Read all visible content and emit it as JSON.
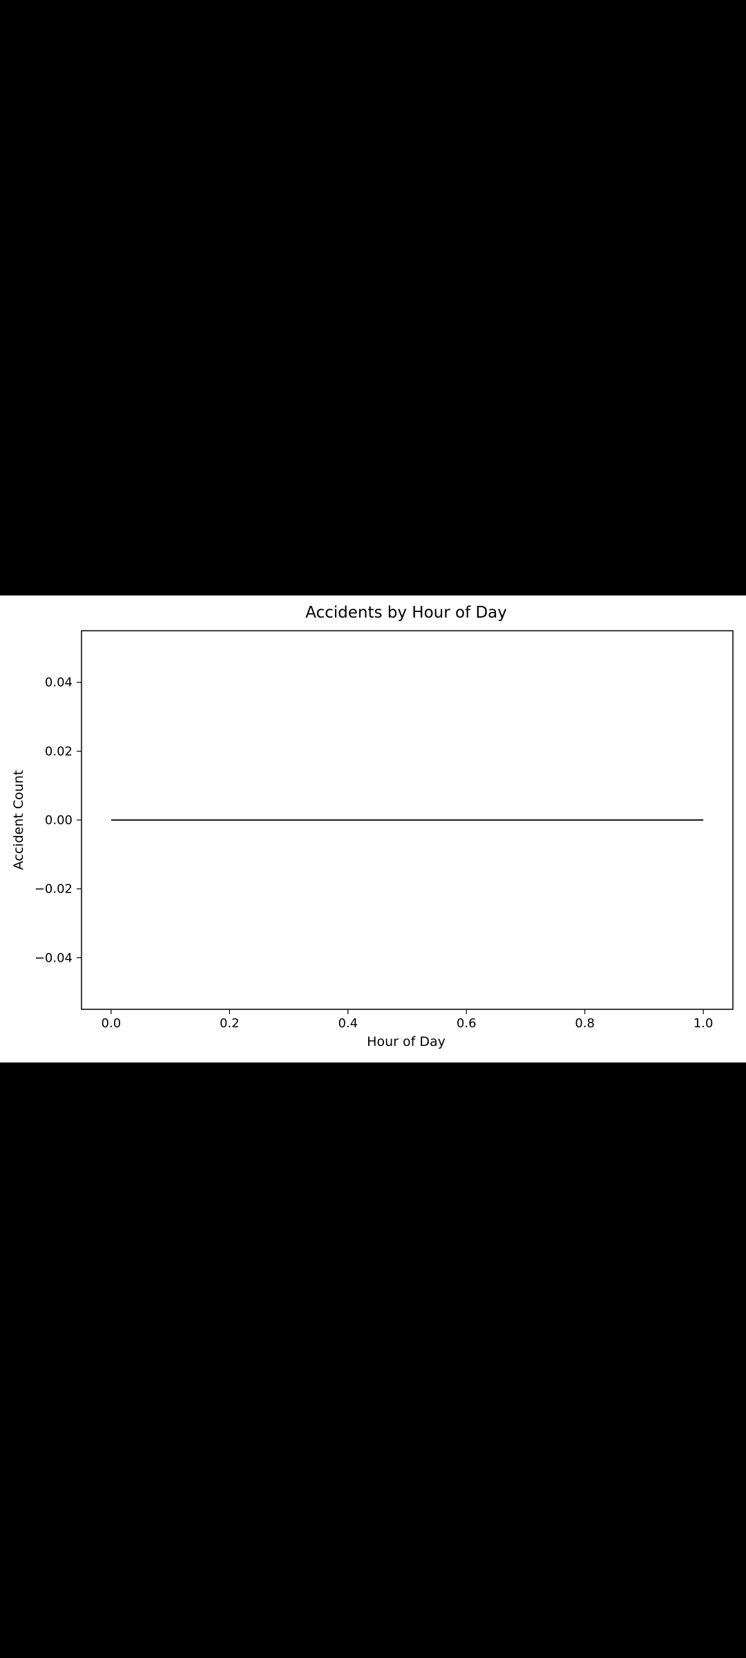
{
  "chart_data": {
    "type": "line",
    "title": "Accidents by Hour of Day",
    "xlabel": "Hour of Day",
    "ylabel": "Accident Count",
    "x": [
      0.0,
      1.0
    ],
    "series": [
      {
        "values": [
          0,
          0
        ]
      }
    ],
    "xlim": [
      -0.05,
      1.05
    ],
    "ylim": [
      -0.055,
      0.055
    ],
    "xticks": [
      0.0,
      0.2,
      0.4,
      0.6,
      0.8,
      1.0
    ],
    "xtick_labels": [
      "0.0",
      "0.2",
      "0.4",
      "0.6",
      "0.8",
      "1.0"
    ],
    "yticks": [
      -0.04,
      -0.02,
      0.0,
      0.02,
      0.04
    ],
    "ytick_labels": [
      "−0.04",
      "−0.02",
      "0.00",
      "0.02",
      "0.04"
    ],
    "grid": false,
    "legend": false,
    "colors": {
      "line": "#1a1a1a",
      "axes": "#000000",
      "background": "#ffffff"
    }
  }
}
